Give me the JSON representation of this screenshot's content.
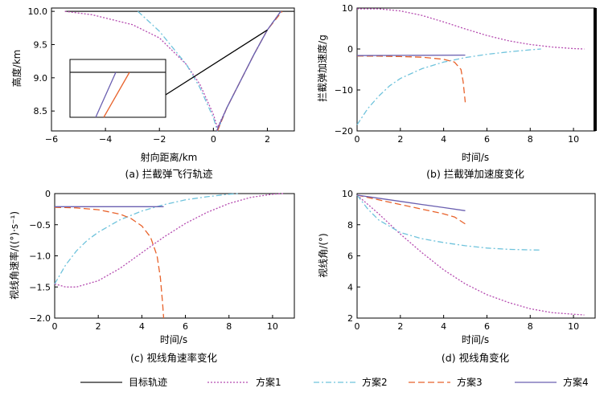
{
  "legend": [
    {
      "name": "目标轨迹",
      "color": "#1a1a1a",
      "dash": ""
    },
    {
      "name": "方案1",
      "color": "#b54bb0",
      "dash": "2,2"
    },
    {
      "name": "方案2",
      "color": "#6fc3dc",
      "dash": "7,3,2,3"
    },
    {
      "name": "方案3",
      "color": "#e8622b",
      "dash": "8,4"
    },
    {
      "name": "方案4",
      "color": "#6a5fb0",
      "dash": ""
    }
  ],
  "chart_data": [
    {
      "type": "line",
      "caption": "(a) 拦截弹飞行轨迹",
      "xlabel": "射向距离/km",
      "ylabel": "高度/km",
      "xlim": [
        -6,
        3
      ],
      "ylim": [
        8.2,
        10.05
      ],
      "xticks": [
        -6,
        -4,
        -2,
        0,
        2
      ],
      "xtick_labels": [
        "−6",
        "−4",
        "−2",
        "0",
        "2"
      ],
      "yticks": [
        8.5,
        9.0,
        9.5,
        10.0
      ],
      "ytick_labels": [
        "8.5",
        "9.0",
        "9.5",
        "10.0"
      ],
      "has_inset": true,
      "series": [
        {
          "name": "目标轨迹",
          "x": [
            -5.5,
            3.0
          ],
          "y": [
            10.0,
            10.0
          ]
        },
        {
          "name": "方案1",
          "x": [
            -5.5,
            -4.5,
            -3.0,
            -2.0,
            -1.0,
            -0.5,
            0.0,
            0.15,
            0.5,
            1.0,
            1.5,
            2.0,
            2.5
          ],
          "y": [
            10.0,
            9.95,
            9.8,
            9.6,
            9.2,
            8.9,
            8.45,
            8.25,
            8.55,
            8.95,
            9.35,
            9.72,
            10.0
          ]
        },
        {
          "name": "方案2",
          "x": [
            -2.8,
            -2.0,
            -1.0,
            -0.5,
            0.0,
            0.15,
            0.5,
            1.0,
            1.5,
            2.0,
            2.5
          ],
          "y": [
            10.0,
            9.7,
            9.2,
            8.85,
            8.4,
            8.2,
            8.55,
            8.95,
            9.35,
            9.72,
            10.0
          ]
        },
        {
          "name": "方案3",
          "x": [
            0.15,
            0.5,
            1.0,
            1.5,
            2.0,
            2.55
          ],
          "y": [
            8.2,
            8.55,
            8.95,
            9.35,
            9.72,
            10.0
          ]
        },
        {
          "name": "方案4",
          "x": [
            0.12,
            0.5,
            1.0,
            1.5,
            2.0,
            2.5
          ],
          "y": [
            8.2,
            8.55,
            8.95,
            9.35,
            9.72,
            10.0
          ]
        }
      ]
    },
    {
      "type": "line",
      "caption": "(b) 拦截弹加速度变化",
      "xlabel": "时间/s",
      "ylabel": "拦截弹加速度/g",
      "xlim": [
        0,
        11
      ],
      "ylim": [
        -20,
        10
      ],
      "xticks": [
        0,
        2,
        4,
        6,
        8,
        10
      ],
      "xtick_labels": [
        "0",
        "2",
        "4",
        "6",
        "8",
        "10"
      ],
      "yticks": [
        -20,
        -10,
        0,
        10
      ],
      "ytick_labels": [
        "−20",
        "−10",
        "0",
        "10"
      ],
      "series": [
        {
          "name": "方案1",
          "x": [
            0,
            1,
            2,
            3,
            4,
            5,
            6,
            7,
            8,
            9,
            10,
            10.5
          ],
          "y": [
            9.8,
            9.8,
            9.3,
            8.2,
            6.6,
            4.9,
            3.3,
            2.0,
            1.1,
            0.5,
            0.1,
            0.0
          ]
        },
        {
          "name": "方案2",
          "x": [
            0,
            0.5,
            1,
            1.5,
            2,
            3,
            4,
            5,
            6,
            7,
            8,
            8.5
          ],
          "y": [
            -18.5,
            -14.5,
            -11.5,
            -9.0,
            -7.2,
            -4.8,
            -3.2,
            -2.1,
            -1.3,
            -0.7,
            -0.2,
            0.0
          ]
        },
        {
          "name": "方案3",
          "x": [
            0,
            1,
            2,
            3,
            4,
            4.5,
            4.8,
            4.9,
            5.0
          ],
          "y": [
            -1.7,
            -1.75,
            -1.85,
            -2.0,
            -2.5,
            -3.2,
            -5.0,
            -8.0,
            -13.0
          ]
        },
        {
          "name": "方案4",
          "x": [
            0,
            5
          ],
          "y": [
            -1.6,
            -1.5
          ]
        }
      ]
    },
    {
      "type": "line",
      "caption": "(c) 视线角速率变化",
      "xlabel": "时间/s",
      "ylabel": "视线角速率/((°)·s⁻¹)",
      "xlim": [
        0,
        11
      ],
      "ylim": [
        -2.0,
        0
      ],
      "xticks": [
        0,
        2,
        4,
        6,
        8,
        10
      ],
      "xtick_labels": [
        "0",
        "2",
        "4",
        "6",
        "8",
        "10"
      ],
      "yticks": [
        -2.0,
        -1.5,
        -1.0,
        -0.5,
        0
      ],
      "ytick_labels": [
        "−2.0",
        "−1.5",
        "−1.0",
        "−0.5",
        "0"
      ],
      "series": [
        {
          "name": "方案1",
          "x": [
            0,
            0.5,
            1,
            2,
            3,
            4,
            5,
            6,
            7,
            8,
            9,
            10,
            10.5
          ],
          "y": [
            -1.45,
            -1.5,
            -1.5,
            -1.4,
            -1.2,
            -0.95,
            -0.7,
            -0.48,
            -0.3,
            -0.16,
            -0.06,
            -0.01,
            0.0
          ]
        },
        {
          "name": "方案2",
          "x": [
            0,
            0.5,
            1,
            1.5,
            2,
            3,
            4,
            5,
            6,
            7,
            8,
            8.5
          ],
          "y": [
            -1.45,
            -1.15,
            -0.92,
            -0.75,
            -0.62,
            -0.42,
            -0.28,
            -0.18,
            -0.1,
            -0.05,
            -0.01,
            0.0
          ]
        },
        {
          "name": "方案3",
          "x": [
            0,
            1,
            2,
            3,
            3.5,
            4,
            4.4,
            4.7,
            4.85,
            4.95,
            5.0
          ],
          "y": [
            -0.22,
            -0.23,
            -0.26,
            -0.33,
            -0.4,
            -0.52,
            -0.7,
            -1.0,
            -1.35,
            -1.75,
            -2.0
          ]
        },
        {
          "name": "方案4",
          "x": [
            0,
            5
          ],
          "y": [
            -0.21,
            -0.21
          ]
        }
      ]
    },
    {
      "type": "line",
      "caption": "(d) 视线角变化",
      "xlabel": "时间/s",
      "ylabel": "视线角/(°)",
      "xlim": [
        0,
        11
      ],
      "ylim": [
        2,
        10
      ],
      "xticks": [
        0,
        2,
        4,
        6,
        8,
        10
      ],
      "xtick_labels": [
        "0",
        "2",
        "4",
        "6",
        "8",
        "10"
      ],
      "yticks": [
        2,
        4,
        6,
        8,
        10
      ],
      "ytick_labels": [
        "2",
        "4",
        "6",
        "8",
        "10"
      ],
      "series": [
        {
          "name": "方案1",
          "x": [
            0,
            1,
            2,
            3,
            4,
            5,
            6,
            7,
            8,
            9,
            10,
            10.5
          ],
          "y": [
            9.9,
            8.7,
            7.4,
            6.2,
            5.1,
            4.2,
            3.5,
            3.0,
            2.6,
            2.35,
            2.25,
            2.2
          ]
        },
        {
          "name": "方案2",
          "x": [
            0,
            0.5,
            1,
            2,
            3,
            4,
            5,
            6,
            7,
            8,
            8.5
          ],
          "y": [
            9.9,
            9.0,
            8.3,
            7.5,
            7.1,
            6.85,
            6.65,
            6.5,
            6.42,
            6.38,
            6.37
          ]
        },
        {
          "name": "方案3",
          "x": [
            0,
            1,
            2,
            3,
            4,
            4.5,
            5.0
          ],
          "y": [
            9.9,
            9.6,
            9.3,
            9.0,
            8.7,
            8.5,
            8.05
          ]
        },
        {
          "name": "方案4",
          "x": [
            0,
            1,
            2,
            3,
            4,
            5
          ],
          "y": [
            9.9,
            9.7,
            9.5,
            9.3,
            9.1,
            8.9
          ]
        }
      ]
    }
  ]
}
